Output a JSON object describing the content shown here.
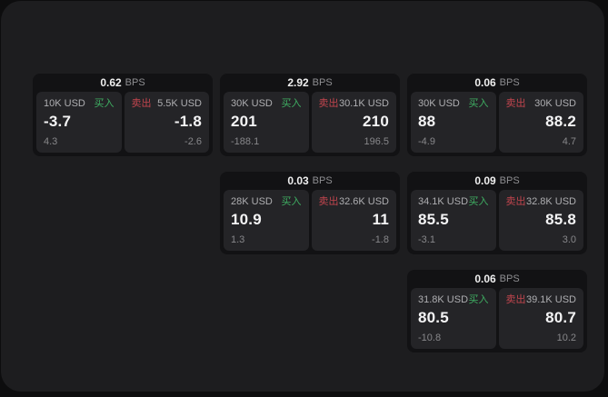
{
  "labels": {
    "bps_unit": "BPS",
    "buy": "买入",
    "sell": "卖出"
  },
  "colors": {
    "buy_green": "#3fae62",
    "sell_red": "#c2454e",
    "window_bg": "#1d1d1f",
    "card_bg": "#121214",
    "panel_bg": "#242427"
  },
  "cards": [
    {
      "col": 1,
      "row": 1,
      "bps": "0.62",
      "buy": {
        "size": "10K USD",
        "value": "-3.7",
        "sub": "4.3"
      },
      "sell": {
        "size": "5.5K USD",
        "value": "-1.8",
        "sub": "-2.6"
      }
    },
    {
      "col": 2,
      "row": 1,
      "bps": "2.92",
      "buy": {
        "size": "30K USD",
        "value": "201",
        "sub": "-188.1"
      },
      "sell": {
        "size": "30.1K USD",
        "value": "210",
        "sub": "196.5"
      }
    },
    {
      "col": 3,
      "row": 1,
      "bps": "0.06",
      "buy": {
        "size": "30K USD",
        "value": "88",
        "sub": "-4.9"
      },
      "sell": {
        "size": "30K USD",
        "value": "88.2",
        "sub": "4.7"
      }
    },
    {
      "col": 2,
      "row": 2,
      "bps": "0.03",
      "buy": {
        "size": "28K USD",
        "value": "10.9",
        "sub": "1.3"
      },
      "sell": {
        "size": "32.6K USD",
        "value": "11",
        "sub": "-1.8"
      }
    },
    {
      "col": 3,
      "row": 2,
      "bps": "0.09",
      "buy": {
        "size": "34.1K USD",
        "value": "85.5",
        "sub": "-3.1"
      },
      "sell": {
        "size": "32.8K USD",
        "value": "85.8",
        "sub": "3.0"
      }
    },
    {
      "col": 3,
      "row": 3,
      "bps": "0.06",
      "buy": {
        "size": "31.8K USD",
        "value": "80.5",
        "sub": "-10.8"
      },
      "sell": {
        "size": "39.1K USD",
        "value": "80.7",
        "sub": "10.2"
      }
    }
  ]
}
